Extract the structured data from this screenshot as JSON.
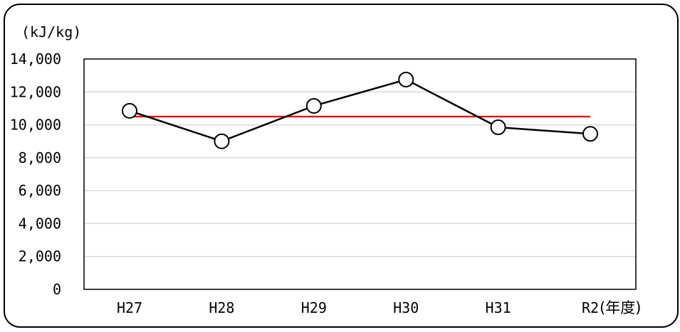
{
  "chart_data": {
    "type": "line",
    "ylabel": "(kJ/kg)",
    "xlabel": "(年度)",
    "ylim": [
      0,
      14000
    ],
    "yticks": [
      "0",
      "2,000",
      "4,000",
      "6,000",
      "8,000",
      "10,000",
      "12,000",
      "14,000"
    ],
    "categories": [
      "H27",
      "H28",
      "H29",
      "H30",
      "H31",
      "R2"
    ],
    "series": [
      {
        "values": [
          10850,
          9000,
          11150,
          12750,
          9850,
          9450
        ],
        "color": "#000000",
        "marker": "open-circle"
      },
      {
        "values": [
          10500,
          10500,
          10500,
          10500,
          10500,
          10500
        ],
        "color": "#e00000"
      }
    ],
    "grid": true
  }
}
